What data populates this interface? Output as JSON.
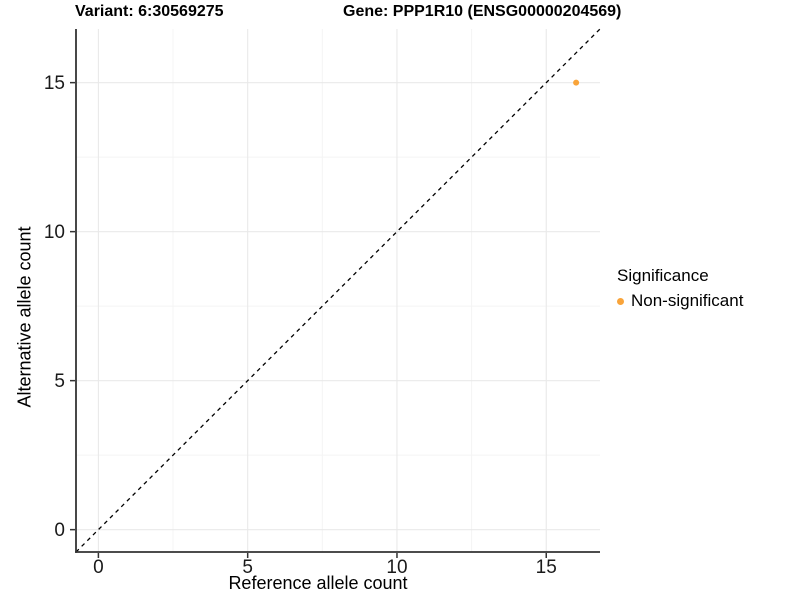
{
  "chart_data": {
    "type": "scatter",
    "title_variant": "Variant: 6:30569275",
    "title_gene": "Gene: PPP1R10 (ENSG00000204569)",
    "xlabel": "Reference allele count",
    "ylabel": "Alternative allele count",
    "xlim": [
      -0.75,
      16.8
    ],
    "ylim": [
      -0.75,
      16.8
    ],
    "x_ticks": [
      0,
      5,
      10,
      15
    ],
    "y_ticks": [
      0,
      5,
      10,
      15
    ],
    "x_minor_gridlines": [
      2.5,
      7.5,
      12.5
    ],
    "y_minor_gridlines": [
      2.5,
      7.5,
      12.5
    ],
    "points": [
      {
        "x": 16,
        "y": 15,
        "significance": "Non-significant"
      }
    ],
    "identity_line": {
      "equation": "y = x",
      "style": "dashed"
    },
    "legend": {
      "title": "Significance",
      "position": "right",
      "items": [
        {
          "label": "Non-significant",
          "color": "#F9A43A"
        }
      ]
    },
    "colors": {
      "point": "#F9A43A",
      "axis": "#333333",
      "tick": "#333333",
      "tick_label": "#1a1a1a",
      "grid_major": "#e9e9e9",
      "grid_minor": "#f4f4f4",
      "identity_line": "#000000",
      "background": "#ffffff"
    },
    "grid": true
  }
}
